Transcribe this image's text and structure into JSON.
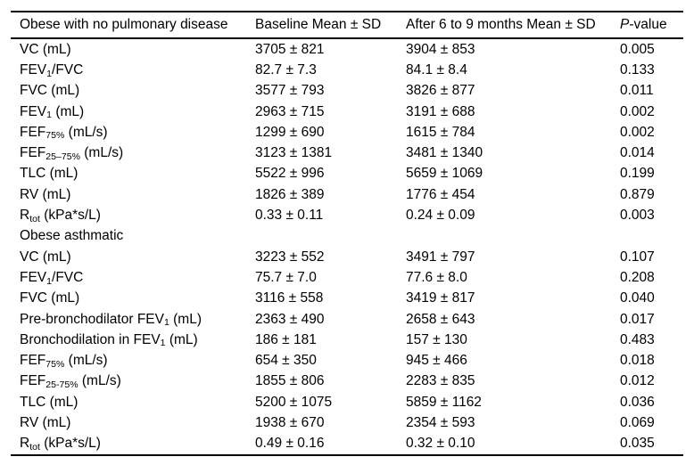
{
  "page": {
    "background": "#ffffff",
    "text_color": "#000000",
    "rule_color": "#000000"
  },
  "table": {
    "columns": [
      [
        [
          "t",
          "Obese with no pulmonary disease"
        ]
      ],
      [
        [
          "t",
          "Baseline Mean ± SD"
        ]
      ],
      [
        [
          "t",
          "After 6 to 9 months Mean ± SD"
        ]
      ],
      [
        [
          "i",
          "P"
        ],
        [
          "t",
          "-value"
        ]
      ]
    ],
    "rows": [
      {
        "section": false,
        "label": [
          [
            "t",
            "VC (mL)"
          ]
        ],
        "cells": [
          "3705 ± 821",
          "3904 ± 853",
          "0.005"
        ]
      },
      {
        "section": false,
        "label": [
          [
            "t",
            "FEV"
          ],
          [
            "sub",
            "1"
          ],
          [
            "t",
            "/FVC"
          ]
        ],
        "cells": [
          "82.7 ± 7.3",
          "84.1 ± 8.4",
          "0.133"
        ]
      },
      {
        "section": false,
        "label": [
          [
            "t",
            "FVC (mL)"
          ]
        ],
        "cells": [
          "3577 ± 793",
          "3826 ± 877",
          "0.011"
        ]
      },
      {
        "section": false,
        "label": [
          [
            "t",
            "FEV"
          ],
          [
            "sub",
            "1"
          ],
          [
            "t",
            " (mL)"
          ]
        ],
        "cells": [
          "2963 ± 715",
          "3191 ± 688",
          "0.002"
        ]
      },
      {
        "section": false,
        "label": [
          [
            "t",
            "FEF"
          ],
          [
            "sub",
            "75%"
          ],
          [
            "t",
            " (mL/s)"
          ]
        ],
        "cells": [
          "1299 ± 690",
          "1615 ± 784",
          "0.002"
        ]
      },
      {
        "section": false,
        "label": [
          [
            "t",
            "FEF"
          ],
          [
            "sub",
            "25–75%"
          ],
          [
            "t",
            " (mL/s)"
          ]
        ],
        "cells": [
          "3123 ± 1381",
          "3481 ± 1340",
          "0.014"
        ]
      },
      {
        "section": false,
        "label": [
          [
            "t",
            "TLC (mL)"
          ]
        ],
        "cells": [
          "5522 ± 996",
          "5659 ± 1069",
          "0.199"
        ]
      },
      {
        "section": false,
        "label": [
          [
            "t",
            "RV (mL)"
          ]
        ],
        "cells": [
          "1826 ± 389",
          "1776 ± 454",
          "0.879"
        ]
      },
      {
        "section": false,
        "label": [
          [
            "t",
            "R"
          ],
          [
            "sub",
            "tot"
          ],
          [
            "t",
            " (kPa*s/L)"
          ]
        ],
        "cells": [
          "0.33 ± 0.11",
          "0.24 ± 0.09",
          "0.003"
        ]
      },
      {
        "section": true,
        "label": [
          [
            "t",
            "Obese asthmatic"
          ]
        ],
        "cells": [
          "",
          "",
          ""
        ]
      },
      {
        "section": false,
        "label": [
          [
            "t",
            "VC (mL)"
          ]
        ],
        "cells": [
          "3223 ± 552",
          "3491 ± 797",
          "0.107"
        ]
      },
      {
        "section": false,
        "label": [
          [
            "t",
            "FEV"
          ],
          [
            "sub",
            "1"
          ],
          [
            "t",
            "/FVC"
          ]
        ],
        "cells": [
          "75.7 ± 7.0",
          "77.6 ± 8.0",
          "0.208"
        ]
      },
      {
        "section": false,
        "label": [
          [
            "t",
            "FVC (mL)"
          ]
        ],
        "cells": [
          "3116 ± 558",
          "3419 ± 817",
          "0.040"
        ]
      },
      {
        "section": false,
        "label": [
          [
            "t",
            "Pre-bronchodilator FEV"
          ],
          [
            "sub",
            "1"
          ],
          [
            "t",
            " (mL)"
          ]
        ],
        "cells": [
          "2363 ± 490",
          "2658 ± 643",
          "0.017"
        ]
      },
      {
        "section": false,
        "label": [
          [
            "t",
            "Bronchodilation in FEV"
          ],
          [
            "sub",
            "1"
          ],
          [
            "t",
            " (mL)"
          ]
        ],
        "cells": [
          "186 ± 181",
          "157 ± 130",
          "0.483"
        ]
      },
      {
        "section": false,
        "label": [
          [
            "t",
            "FEF"
          ],
          [
            "sub",
            "75%"
          ],
          [
            "t",
            " (mL/s)"
          ]
        ],
        "cells": [
          "654 ± 350",
          "945 ± 466",
          "0.018"
        ]
      },
      {
        "section": false,
        "label": [
          [
            "t",
            "FEF"
          ],
          [
            "sub",
            "25-75%"
          ],
          [
            "t",
            " (mL/s)"
          ]
        ],
        "cells": [
          "1855 ± 806",
          "2283 ± 835",
          "0.012"
        ]
      },
      {
        "section": false,
        "label": [
          [
            "t",
            "TLC (mL)"
          ]
        ],
        "cells": [
          "5200 ± 1075",
          "5859 ± 1162",
          "0.036"
        ]
      },
      {
        "section": false,
        "label": [
          [
            "t",
            "RV (mL)"
          ]
        ],
        "cells": [
          "1938 ± 670",
          "2354 ± 593",
          "0.069"
        ]
      },
      {
        "section": false,
        "label": [
          [
            "t",
            "R"
          ],
          [
            "sub",
            "tot"
          ],
          [
            "t",
            " (kPa*s/L)"
          ]
        ],
        "cells": [
          "0.49 ± 0.16",
          "0.32 ± 0.10",
          "0.035"
        ]
      }
    ]
  }
}
